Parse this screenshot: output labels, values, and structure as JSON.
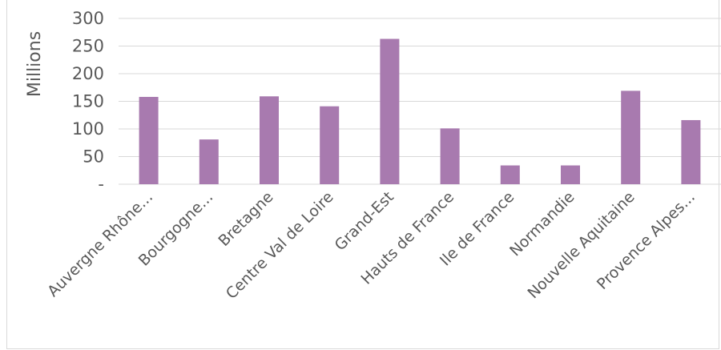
{
  "chart_data": {
    "type": "bar",
    "title": "",
    "xlabel": "",
    "ylabel": "Millions",
    "ylim": [
      0,
      300
    ],
    "yticks": [
      {
        "value": 0,
        "label": "-"
      },
      {
        "value": 50,
        "label": "50"
      },
      {
        "value": 100,
        "label": "100"
      },
      {
        "value": 150,
        "label": "150"
      },
      {
        "value": 200,
        "label": "200"
      },
      {
        "value": 250,
        "label": "250"
      },
      {
        "value": 300,
        "label": "300"
      }
    ],
    "categories": [
      "Auvergne Rhône...",
      "Bourgogne...",
      "Bretagne",
      "Centre Val de Loire",
      "Grand-Est",
      "Hauts de France",
      "Ile de France",
      "Normandie",
      "Nouvelle Aquitaine",
      "Provence Alpes..."
    ],
    "values": [
      158,
      81,
      159,
      141,
      263,
      101,
      34,
      34,
      169,
      116
    ],
    "grid": true,
    "legend": "none",
    "bar_color": "#a87aaf",
    "grid_color": "#d9d9d9",
    "text_color": "#595959"
  }
}
